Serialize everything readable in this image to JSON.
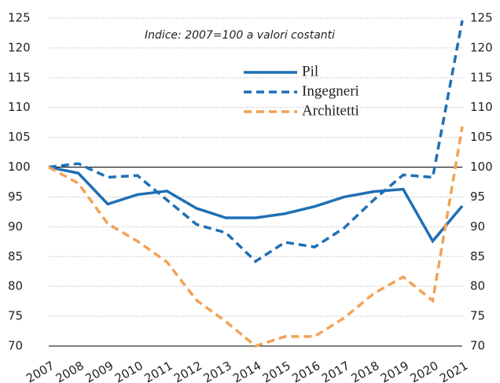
{
  "chart_data": {
    "type": "line",
    "annotation": "Indice: 2007=100 a valori costanti",
    "categories": [
      "2007",
      "2008",
      "2009",
      "2010",
      "2011",
      "2012",
      "2013",
      "2014",
      "2015",
      "2016",
      "2017",
      "2018",
      "2019",
      "2020",
      "2021"
    ],
    "series": [
      {
        "name": "Pil",
        "color": "#1f6fb5",
        "dash": false,
        "values": [
          100,
          99,
          93.8,
          95.4,
          96,
          93.1,
          91.5,
          91.5,
          92.2,
          93.4,
          95,
          95.9,
          96.3,
          87.6,
          93.5
        ]
      },
      {
        "name": "Ingegneri",
        "color": "#1f6fb5",
        "dash": true,
        "values": [
          100,
          100.6,
          98.3,
          98.6,
          94.5,
          90.4,
          89,
          84.2,
          87.4,
          86.6,
          89.8,
          94.5,
          98.7,
          98.3,
          124.6
        ]
      },
      {
        "name": "Architetti",
        "color": "#f2a256",
        "dash": true,
        "values": [
          100,
          97.3,
          90.5,
          87.6,
          84.1,
          77.7,
          74.1,
          70,
          71.6,
          71.6,
          74.7,
          78.8,
          81.6,
          77.6,
          106.8
        ]
      }
    ],
    "ylim": [
      70,
      125
    ],
    "yticks": [
      70,
      75,
      80,
      85,
      90,
      95,
      100,
      105,
      110,
      115,
      120,
      125
    ],
    "y2lim": [
      70,
      125
    ],
    "y2ticks": [
      70,
      75,
      80,
      85,
      90,
      95,
      100,
      105,
      110,
      115,
      120,
      125
    ],
    "reference_line": 100,
    "grid": true
  }
}
